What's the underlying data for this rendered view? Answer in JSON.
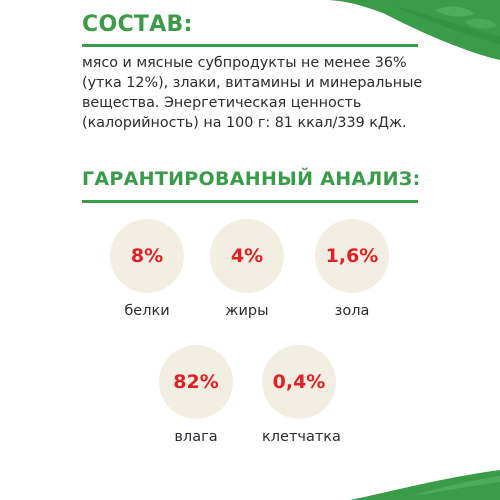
{
  "composition": {
    "title": "СОСТАВ:",
    "text": "мясо и мясные субпродукты не менее 36% (утка 12%), злаки, витамины и минеральные вещества. Энергетическая ценность (калорийность) на 100 г: 81 ккал/339 кДж."
  },
  "analysis": {
    "title": "ГАРАНТИРОВАННЫЙ АНАЛИЗ:",
    "items": [
      {
        "value": "8%",
        "label": "белки"
      },
      {
        "value": "4%",
        "label": "жиры"
      },
      {
        "value": "1,6%",
        "label": "зола"
      },
      {
        "value": "82%",
        "label": "влага"
      },
      {
        "value": "0,4%",
        "label": "клетчатка"
      }
    ]
  },
  "colors": {
    "title_green": "#3a9b49",
    "value_red": "#e31e24",
    "circle_beige": "#f2efe2",
    "text_dark": "#2c2c2c"
  },
  "icons": [
    "leaf-decoration"
  ]
}
